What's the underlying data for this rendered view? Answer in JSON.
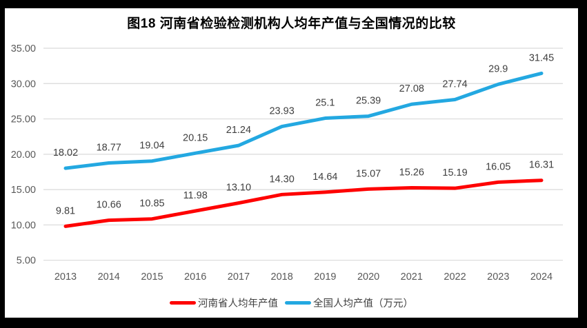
{
  "colors": {
    "henan": "#fe0000",
    "national": "#23a8e1",
    "gridline": "#d9d9d9",
    "axis_text": "#595959",
    "data_label_text": "#3f3f3f",
    "title_text": "#000000",
    "frame": "#000000",
    "background": "#ffffff"
  },
  "chart_data": {
    "type": "line",
    "title": "图18  河南省检验检测机构人均年产值与全国情况的比较",
    "categories": [
      "2013",
      "2014",
      "2015",
      "2016",
      "2017",
      "2018",
      "2019",
      "2020",
      "2021",
      "2022",
      "2023",
      "2024"
    ],
    "series": [
      {
        "name": "河南省人均年产值",
        "color_key": "henan",
        "values": [
          9.81,
          10.66,
          10.85,
          11.98,
          13.1,
          14.3,
          14.64,
          15.07,
          15.26,
          15.19,
          16.05,
          16.31
        ],
        "labels": [
          "9.81",
          "10.66",
          "10.85",
          "11.98",
          "13.10",
          "14.30",
          "14.64",
          "15.07",
          "15.26",
          "15.19",
          "16.05",
          "16.31"
        ]
      },
      {
        "name": "全国人均产值（万元）",
        "color_key": "national",
        "values": [
          18.02,
          18.77,
          19.04,
          20.15,
          21.24,
          23.93,
          25.1,
          25.39,
          27.08,
          27.74,
          29.9,
          31.45
        ],
        "labels": [
          "18.02",
          "18.77",
          "19.04",
          "20.15",
          "21.24",
          "23.93",
          "25.1",
          "25.39",
          "27.08",
          "27.74",
          "29.9",
          "31.45"
        ]
      }
    ],
    "y_ticks": [
      "35.00",
      "30.00",
      "25.00",
      "20.00",
      "15.00",
      "10.00",
      "5.00"
    ],
    "y_tick_values": [
      35,
      30,
      25,
      20,
      15,
      10,
      5
    ],
    "ylim": [
      5,
      35
    ],
    "xlabel": "",
    "ylabel": "",
    "grid": true,
    "legend_position": "bottom"
  }
}
